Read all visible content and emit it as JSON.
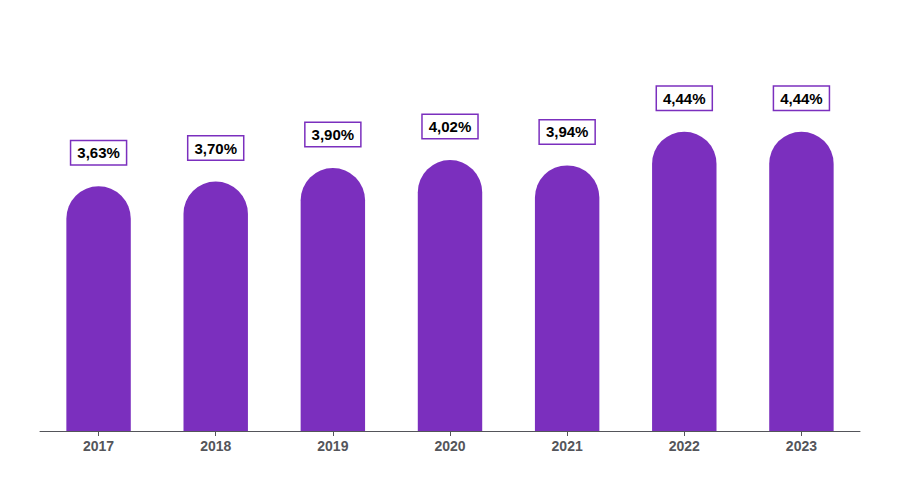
{
  "chart_data": {
    "type": "bar",
    "categories": [
      "2017",
      "2018",
      "2019",
      "2020",
      "2021",
      "2022",
      "2023"
    ],
    "values": [
      3.63,
      3.7,
      3.9,
      4.02,
      3.94,
      4.44,
      4.44
    ],
    "value_labels": [
      "3,63%",
      "3,70%",
      "3,90%",
      "4,02%",
      "3,94%",
      "4,44%",
      "4,44%"
    ],
    "color": "#7B2FBE",
    "ylim": [
      0,
      5.8
    ],
    "grid": false,
    "data_labels": true,
    "tick_labels": "x"
  }
}
